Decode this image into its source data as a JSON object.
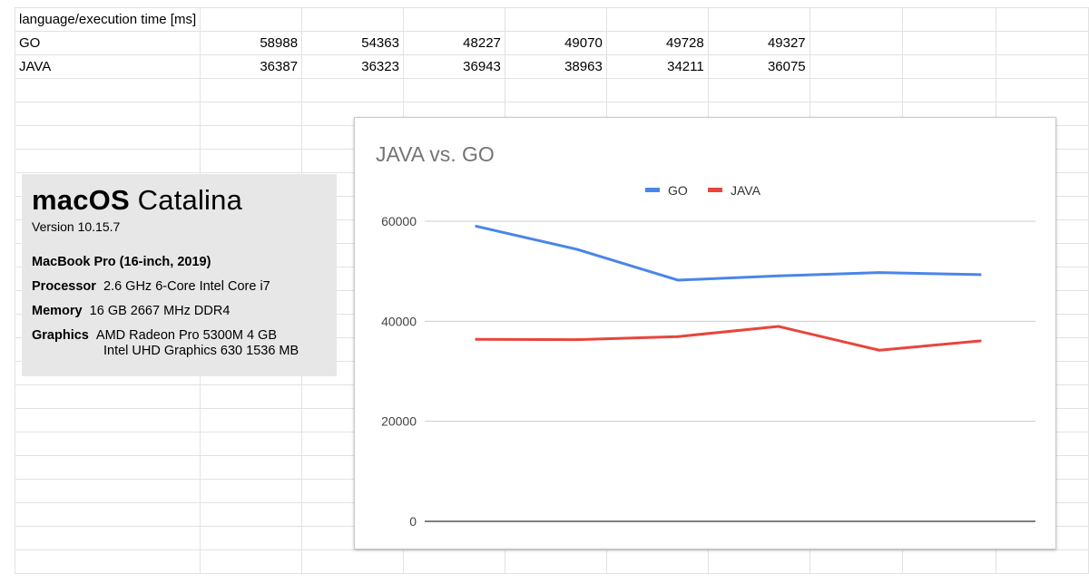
{
  "sheet": {
    "rows": [
      [
        "language/execution time [ms]",
        "",
        "",
        "",
        "",
        "",
        "",
        "",
        "",
        ""
      ],
      [
        "GO",
        "58988",
        "54363",
        "48227",
        "49070",
        "49728",
        "49327",
        "",
        "",
        ""
      ],
      [
        "JAVA",
        "36387",
        "36323",
        "36943",
        "38963",
        "34211",
        "36075",
        "",
        "",
        ""
      ],
      [
        "",
        "",
        "",
        "",
        "",
        "",
        "",
        "",
        "",
        ""
      ],
      [
        "",
        "",
        "",
        "",
        "",
        "",
        "",
        "",
        "",
        ""
      ],
      [
        "",
        "",
        "",
        "",
        "",
        "",
        "",
        "",
        "",
        ""
      ],
      [
        "",
        "",
        "",
        "",
        "",
        "",
        "",
        "",
        "",
        ""
      ],
      [
        "",
        "",
        "",
        "",
        "",
        "",
        "",
        "",
        "",
        ""
      ],
      [
        "",
        "",
        "",
        "",
        "",
        "",
        "",
        "",
        "",
        ""
      ],
      [
        "",
        "",
        "",
        "",
        "",
        "",
        "",
        "",
        "",
        ""
      ],
      [
        "",
        "",
        "",
        "",
        "",
        "",
        "",
        "",
        "",
        ""
      ],
      [
        "",
        "",
        "",
        "",
        "",
        "",
        "",
        "",
        "",
        ""
      ],
      [
        "",
        "",
        "",
        "",
        "",
        "",
        "",
        "",
        "",
        ""
      ],
      [
        "",
        "",
        "",
        "",
        "",
        "",
        "",
        "",
        "",
        ""
      ],
      [
        "",
        "",
        "",
        "",
        "",
        "",
        "",
        "",
        "",
        ""
      ],
      [
        "",
        "",
        "",
        "",
        "",
        "",
        "",
        "",
        "",
        ""
      ],
      [
        "",
        "",
        "",
        "",
        "",
        "",
        "",
        "",
        "",
        ""
      ],
      [
        "",
        "",
        "",
        "",
        "",
        "",
        "",
        "",
        "",
        ""
      ],
      [
        "",
        "",
        "",
        "",
        "",
        "",
        "",
        "",
        "",
        ""
      ],
      [
        "",
        "",
        "",
        "",
        "",
        "",
        "",
        "",
        "",
        ""
      ],
      [
        "",
        "",
        "",
        "",
        "",
        "",
        "",
        "",
        "",
        ""
      ],
      [
        "",
        "",
        "",
        "",
        "",
        "",
        "",
        "",
        "",
        ""
      ],
      [
        "",
        "",
        "",
        "",
        "",
        "",
        "",
        "",
        "",
        ""
      ],
      [
        "",
        "",
        "",
        "",
        "",
        "",
        "",
        "",
        "",
        ""
      ]
    ]
  },
  "system_info": {
    "os_name_bold": "macOS",
    "os_name_light": "Catalina",
    "version": "Version 10.15.7",
    "model": "MacBook Pro (16-inch, 2019)",
    "processor_label": "Processor",
    "processor_value": "2.6 GHz 6-Core Intel Core i7",
    "memory_label": "Memory",
    "memory_value": "16 GB 2667 MHz DDR4",
    "graphics_label": "Graphics",
    "graphics_value_1": "AMD Radeon Pro 5300M 4 GB",
    "graphics_value_2": "Intel UHD Graphics 630 1536 MB"
  },
  "chart_data": {
    "type": "line",
    "title": "JAVA vs. GO",
    "legend_position": "top-center",
    "x": [
      1,
      2,
      3,
      4,
      5,
      6
    ],
    "ylim": [
      0,
      60000
    ],
    "yticks": [
      0,
      20000,
      40000,
      60000
    ],
    "grid": true,
    "series": [
      {
        "name": "GO",
        "color": "#4a86e8",
        "values": [
          58988,
          54363,
          48227,
          49070,
          49728,
          49327
        ]
      },
      {
        "name": "JAVA",
        "color": "#e8453c",
        "values": [
          36387,
          36323,
          36943,
          38963,
          34211,
          36075
        ]
      }
    ]
  }
}
